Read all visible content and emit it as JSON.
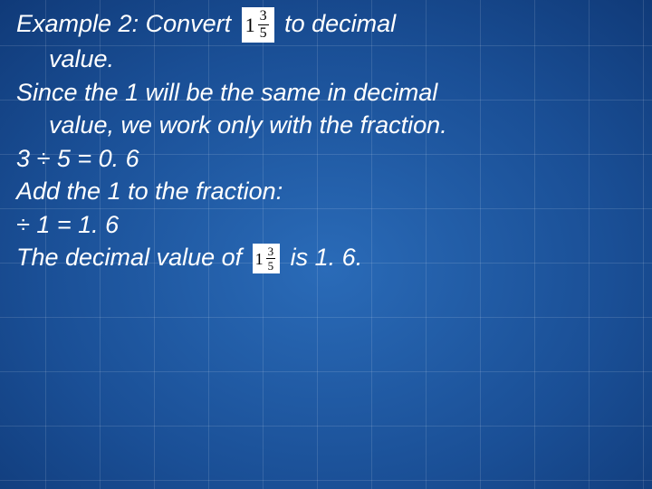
{
  "colors": {
    "text": "#ffffff",
    "fraction_bg": "#ffffff",
    "fraction_fg": "#000000"
  },
  "typography": {
    "body_font": "Verdana",
    "body_size_pt": 20,
    "body_style": "italic",
    "fraction_font": "Times New Roman"
  },
  "fraction1": {
    "whole": "1",
    "num": "3",
    "den": "5"
  },
  "fraction2": {
    "whole": "1",
    "num": "3",
    "den": "5"
  },
  "lines": {
    "l1a": "Example 2: Convert ",
    "l1b": " to decimal",
    "l2": "value.",
    "l3": "Since the 1 will be the same in decimal",
    "l4": "value, we work only with the fraction.",
    "l5": "3 ÷ 5 =  0. 6",
    "l6": "Add the 1 to the fraction:",
    "l7": "÷ 1 =    1. 6",
    "l8a": "The decimal value of  ",
    "l8b": "  is 1. 6."
  }
}
